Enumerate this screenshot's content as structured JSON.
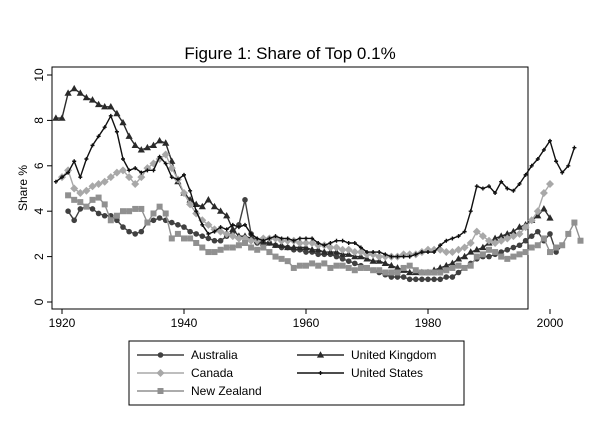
{
  "chart_data": {
    "type": "line",
    "title": "Figure 1: Share of Top 0.1%",
    "xlabel": "",
    "ylabel": "Share %",
    "xlim": [
      1918,
      2007
    ],
    "ylim": [
      0,
      10
    ],
    "xticks": [
      1920,
      1940,
      1960,
      1980,
      2000
    ],
    "yticks": [
      0,
      2,
      4,
      6,
      8,
      10
    ],
    "grid": false,
    "legend_position": "bottom",
    "series": [
      {
        "name": "Australia",
        "color": "#404040",
        "marker": "circle",
        "x": [
          1921,
          1922,
          1923,
          1924,
          1925,
          1926,
          1927,
          1928,
          1929,
          1930,
          1931,
          1932,
          1933,
          1934,
          1935,
          1936,
          1937,
          1938,
          1939,
          1940,
          1941,
          1942,
          1943,
          1944,
          1945,
          1946,
          1947,
          1948,
          1949,
          1950,
          1951,
          1952,
          1953,
          1954,
          1955,
          1956,
          1957,
          1958,
          1959,
          1960,
          1961,
          1962,
          1963,
          1964,
          1965,
          1966,
          1967,
          1968,
          1969,
          1970,
          1971,
          1972,
          1973,
          1974,
          1975,
          1976,
          1977,
          1978,
          1979,
          1980,
          1981,
          1982,
          1983,
          1984,
          1985,
          1986,
          1987,
          1988,
          1989,
          1990,
          1991,
          1992,
          1993,
          1994,
          1995,
          1996,
          1997,
          1998,
          1999,
          2000,
          2001,
          2002
        ],
        "values": [
          4.0,
          3.6,
          4.1,
          4.2,
          4.1,
          3.9,
          3.8,
          3.8,
          3.6,
          3.3,
          3.1,
          3.0,
          3.1,
          3.5,
          3.6,
          3.7,
          3.6,
          3.5,
          3.4,
          3.3,
          3.1,
          3.0,
          2.9,
          2.8,
          2.7,
          2.7,
          2.9,
          3.1,
          3.4,
          4.5,
          3.0,
          2.6,
          2.6,
          2.6,
          2.5,
          2.4,
          2.4,
          2.3,
          2.3,
          2.2,
          2.2,
          2.1,
          2.1,
          2.1,
          2.0,
          1.9,
          1.8,
          1.7,
          1.6,
          1.5,
          1.4,
          1.3,
          1.2,
          1.1,
          1.1,
          1.1,
          1.0,
          1.0,
          1.0,
          1.0,
          1.0,
          1.0,
          1.1,
          1.1,
          1.3,
          1.5,
          1.7,
          1.9,
          2.0,
          2.0,
          2.1,
          2.2,
          2.3,
          2.4,
          2.5,
          2.7,
          2.9,
          3.1,
          2.7,
          3.0,
          2.2,
          2.5
        ]
      },
      {
        "name": "United Kingdom",
        "color": "#2a2a2a",
        "marker": "triangle",
        "x": [
          1919,
          1920,
          1921,
          1922,
          1923,
          1924,
          1925,
          1926,
          1927,
          1928,
          1929,
          1930,
          1931,
          1932,
          1933,
          1934,
          1935,
          1936,
          1937,
          1938,
          1939,
          1940,
          1941,
          1942,
          1943,
          1944,
          1945,
          1946,
          1947,
          1948,
          1949,
          1950,
          1951,
          1952,
          1953,
          1954,
          1955,
          1956,
          1957,
          1958,
          1959,
          1960,
          1961,
          1962,
          1963,
          1964,
          1965,
          1966,
          1967,
          1968,
          1969,
          1970,
          1971,
          1972,
          1973,
          1974,
          1975,
          1976,
          1977,
          1978,
          1979,
          1980,
          1981,
          1982,
          1983,
          1984,
          1985,
          1986,
          1987,
          1988,
          1989,
          1990,
          1991,
          1992,
          1993,
          1994,
          1995,
          1996,
          1997,
          1998,
          1999,
          2000
        ],
        "values": [
          8.1,
          8.1,
          9.2,
          9.4,
          9.2,
          9.0,
          8.9,
          8.7,
          8.6,
          8.6,
          8.3,
          7.9,
          7.3,
          6.9,
          6.7,
          6.8,
          6.9,
          7.1,
          7.0,
          6.2,
          5.3,
          4.8,
          4.5,
          4.3,
          4.2,
          4.5,
          4.2,
          4.0,
          3.8,
          3.2,
          2.9,
          2.9,
          2.8,
          2.7,
          2.6,
          2.6,
          2.5,
          2.5,
          2.4,
          2.4,
          2.4,
          2.4,
          2.3,
          2.3,
          2.2,
          2.2,
          2.2,
          2.1,
          2.1,
          2.0,
          2.0,
          1.9,
          1.8,
          1.8,
          1.7,
          1.6,
          1.5,
          1.4,
          1.3,
          1.3,
          1.3,
          1.3,
          1.4,
          1.5,
          1.6,
          1.7,
          1.9,
          2.0,
          2.2,
          2.3,
          2.4,
          2.6,
          2.8,
          2.9,
          3.0,
          3.1,
          3.3,
          3.4,
          3.6,
          3.8,
          4.1,
          3.7
        ]
      },
      {
        "name": "Canada",
        "color": "#a8a8a8",
        "marker": "diamond",
        "x": [
          1920,
          1921,
          1922,
          1923,
          1924,
          1925,
          1926,
          1927,
          1928,
          1929,
          1930,
          1931,
          1932,
          1933,
          1934,
          1935,
          1936,
          1937,
          1938,
          1939,
          1940,
          1941,
          1942,
          1943,
          1944,
          1945,
          1946,
          1947,
          1948,
          1949,
          1950,
          1951,
          1952,
          1953,
          1954,
          1955,
          1956,
          1957,
          1958,
          1959,
          1960,
          1961,
          1962,
          1963,
          1964,
          1965,
          1966,
          1967,
          1968,
          1969,
          1970,
          1971,
          1972,
          1973,
          1974,
          1975,
          1976,
          1977,
          1978,
          1979,
          1980,
          1981,
          1982,
          1983,
          1984,
          1985,
          1986,
          1987,
          1988,
          1989,
          1990,
          1991,
          1992,
          1993,
          1994,
          1995,
          1996,
          1997,
          1998,
          1999,
          2000
        ],
        "values": [
          5.5,
          5.8,
          5.0,
          4.8,
          4.9,
          5.1,
          5.2,
          5.3,
          5.5,
          5.7,
          5.8,
          5.5,
          5.2,
          5.5,
          5.9,
          6.1,
          6.3,
          6.5,
          5.9,
          5.4,
          4.8,
          4.3,
          3.9,
          3.6,
          3.4,
          3.2,
          3.1,
          3.0,
          2.9,
          2.8,
          2.8,
          2.7,
          2.7,
          2.8,
          2.8,
          2.8,
          2.7,
          2.7,
          2.7,
          2.6,
          2.6,
          2.6,
          2.5,
          2.5,
          2.4,
          2.4,
          2.3,
          2.3,
          2.2,
          2.2,
          2.1,
          2.1,
          2.0,
          2.0,
          2.0,
          2.0,
          2.1,
          2.1,
          2.1,
          2.2,
          2.3,
          2.3,
          2.3,
          2.2,
          2.2,
          2.3,
          2.4,
          2.6,
          3.1,
          2.9,
          2.7,
          2.6,
          2.7,
          2.8,
          2.9,
          3.0,
          3.3,
          3.6,
          4.0,
          4.8,
          5.2
        ]
      },
      {
        "name": "United States",
        "color": "#101010",
        "marker": "cross",
        "x": [
          1919,
          1920,
          1921,
          1922,
          1923,
          1924,
          1925,
          1926,
          1927,
          1928,
          1929,
          1930,
          1931,
          1932,
          1933,
          1934,
          1935,
          1936,
          1937,
          1938,
          1939,
          1940,
          1941,
          1942,
          1943,
          1944,
          1945,
          1946,
          1947,
          1948,
          1949,
          1950,
          1951,
          1952,
          1953,
          1954,
          1955,
          1956,
          1957,
          1958,
          1959,
          1960,
          1961,
          1962,
          1963,
          1964,
          1965,
          1966,
          1967,
          1968,
          1969,
          1970,
          1971,
          1972,
          1973,
          1974,
          1975,
          1976,
          1977,
          1978,
          1979,
          1980,
          1981,
          1982,
          1983,
          1984,
          1985,
          1986,
          1987,
          1988,
          1989,
          1990,
          1991,
          1992,
          1993,
          1994,
          1995,
          1996,
          1997,
          1998,
          1999,
          2000,
          2001,
          2002,
          2003,
          2004
        ],
        "values": [
          5.3,
          5.5,
          5.7,
          6.2,
          5.5,
          6.3,
          6.9,
          7.3,
          7.7,
          8.2,
          7.5,
          6.3,
          5.8,
          5.9,
          5.7,
          5.8,
          5.8,
          6.4,
          6.1,
          5.5,
          5.4,
          5.6,
          4.9,
          4.0,
          3.4,
          3.0,
          3.1,
          3.3,
          3.2,
          3.4,
          3.3,
          3.4,
          3.0,
          2.8,
          2.7,
          2.8,
          2.9,
          2.8,
          2.8,
          2.7,
          2.8,
          2.8,
          2.8,
          2.6,
          2.5,
          2.6,
          2.7,
          2.7,
          2.6,
          2.6,
          2.4,
          2.2,
          2.2,
          2.2,
          2.1,
          2.0,
          2.0,
          2.0,
          2.0,
          2.1,
          2.2,
          2.2,
          2.2,
          2.5,
          2.7,
          2.8,
          2.9,
          3.1,
          4.0,
          5.1,
          5.0,
          5.1,
          4.8,
          5.3,
          5.0,
          4.9,
          5.2,
          5.6,
          6.0,
          6.3,
          6.7,
          7.1,
          6.2,
          5.7,
          6.0,
          6.8
        ]
      },
      {
        "name": "New Zealand",
        "color": "#909090",
        "marker": "square",
        "x": [
          1921,
          1922,
          1923,
          1924,
          1925,
          1926,
          1927,
          1928,
          1929,
          1930,
          1931,
          1932,
          1933,
          1934,
          1935,
          1936,
          1937,
          1938,
          1939,
          1940,
          1941,
          1942,
          1943,
          1944,
          1945,
          1946,
          1947,
          1948,
          1949,
          1950,
          1951,
          1952,
          1953,
          1954,
          1955,
          1956,
          1957,
          1958,
          1959,
          1960,
          1961,
          1962,
          1963,
          1964,
          1965,
          1966,
          1967,
          1968,
          1969,
          1970,
          1971,
          1972,
          1973,
          1974,
          1975,
          1976,
          1977,
          1978,
          1979,
          1980,
          1981,
          1982,
          1983,
          1984,
          1985,
          1986,
          1987,
          1988,
          1989,
          1990,
          1991,
          1992,
          1993,
          1994,
          1995,
          1996,
          1997,
          1998,
          1999,
          2000,
          2001,
          2002,
          2003,
          2004,
          2005
        ],
        "values": [
          4.7,
          4.5,
          4.4,
          4.2,
          4.5,
          4.6,
          4.3,
          3.6,
          3.8,
          4.0,
          4.0,
          4.1,
          4.1,
          3.5,
          3.9,
          4.2,
          3.9,
          2.8,
          3.0,
          2.8,
          2.8,
          2.6,
          2.4,
          2.2,
          2.2,
          2.3,
          2.4,
          2.4,
          2.5,
          2.6,
          2.4,
          2.3,
          2.4,
          2.2,
          2.0,
          1.9,
          1.8,
          1.5,
          1.6,
          1.6,
          1.7,
          1.6,
          1.7,
          1.5,
          1.6,
          1.6,
          1.5,
          1.4,
          1.5,
          1.5,
          1.4,
          1.4,
          1.3,
          1.3,
          1.3,
          1.5,
          1.6,
          1.4,
          1.3,
          1.3,
          1.3,
          1.3,
          1.4,
          1.5,
          1.6,
          1.5,
          1.6,
          2.0,
          2.1,
          2.3,
          2.2,
          2.0,
          1.9,
          2.0,
          2.1,
          2.2,
          2.4,
          2.5,
          2.8,
          2.2,
          2.4,
          2.5,
          3.0,
          3.5,
          2.7
        ]
      }
    ],
    "legend_order": [
      "Australia",
      "United Kingdom",
      "Canada",
      "United States",
      "New Zealand"
    ]
  }
}
